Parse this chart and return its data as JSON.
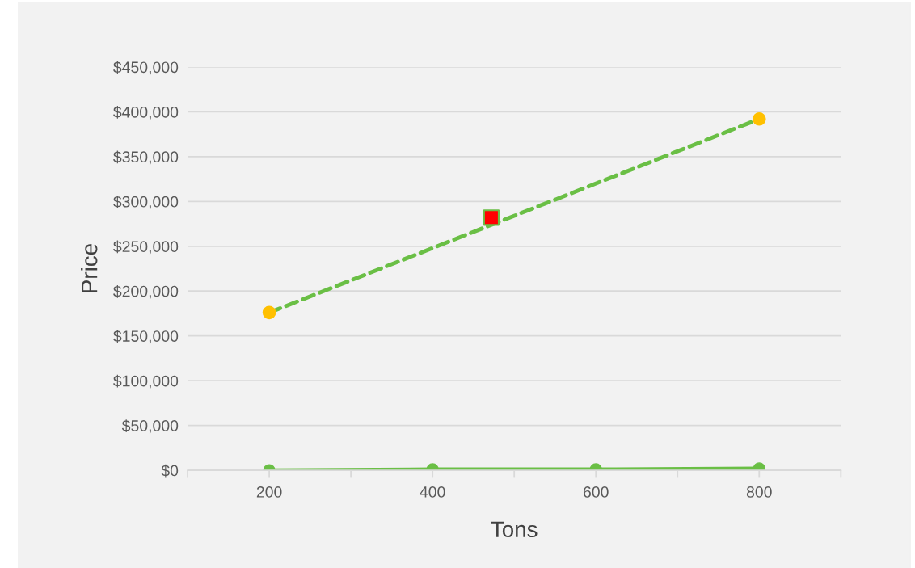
{
  "chart_data": {
    "type": "line",
    "xlabel": "Tons",
    "ylabel": "Price",
    "xlim": [
      100,
      900
    ],
    "xticks": [
      {
        "value": 100,
        "label": null
      },
      200,
      {
        "value": 300,
        "label": null
      },
      400,
      {
        "value": 500,
        "label": null
      },
      600,
      {
        "value": 700,
        "label": null
      },
      800,
      {
        "value": 900,
        "label": null
      }
    ],
    "ylim": [
      0,
      450000
    ],
    "yticks": [
      {
        "value": 0,
        "label": "$0"
      },
      {
        "value": 50000,
        "label": "$50,000"
      },
      {
        "value": 100000,
        "label": "$100,000"
      },
      {
        "value": 150000,
        "label": "$150,000"
      },
      {
        "value": 200000,
        "label": "$200,000"
      },
      {
        "value": 250000,
        "label": "$250,000"
      },
      {
        "value": 300000,
        "label": "$300,000"
      },
      {
        "value": 350000,
        "label": "$350,000"
      },
      {
        "value": 400000,
        "label": "$400,000"
      },
      {
        "value": 450000,
        "label": "$450,000"
      }
    ],
    "grid": "y",
    "series": [
      {
        "type": "line",
        "color": "#6abf45",
        "x": [
          200,
          800
        ],
        "values": [
          176000,
          392000
        ],
        "marker": "none",
        "line_style": "dashed"
      },
      {
        "type": "line",
        "color": "#6abf45",
        "x": [
          200,
          400,
          600,
          800
        ],
        "values": [
          0,
          1000,
          1000,
          2000
        ],
        "marker": "circle",
        "line_style": "solid"
      },
      {
        "type": "scatter",
        "color": "#ffc000",
        "x": [
          200,
          800
        ],
        "values": [
          176000,
          392000
        ],
        "marker": "circle"
      },
      {
        "type": "scatter",
        "color": "#ff0000",
        "x": [
          472
        ],
        "values": [
          282000
        ],
        "marker": "square"
      }
    ]
  }
}
